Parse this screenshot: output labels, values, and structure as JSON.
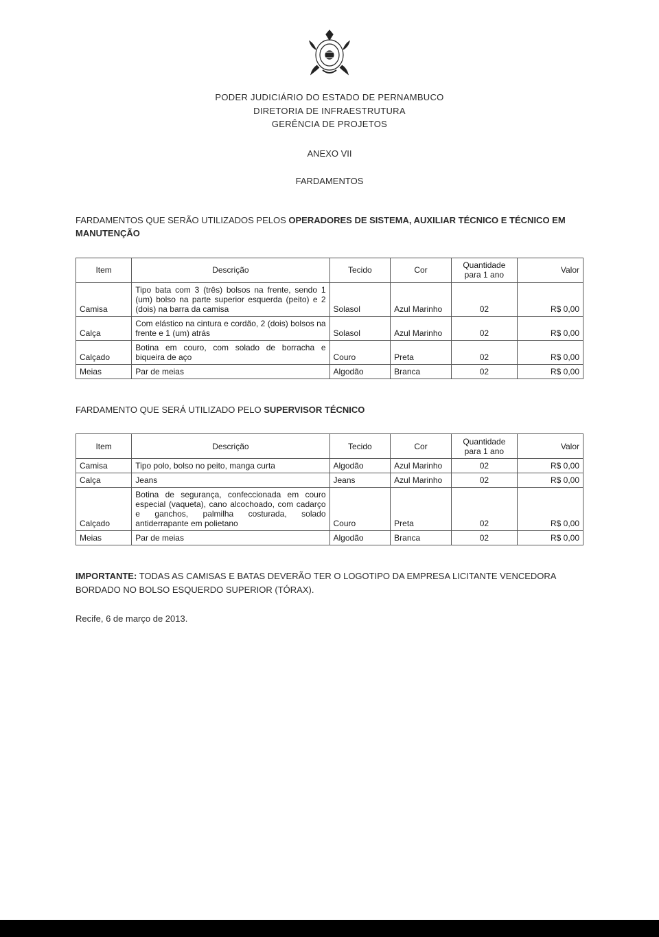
{
  "header": {
    "line1": "PODER JUDICIÁRIO DO ESTADO DE PERNAMBUCO",
    "line2": "DIRETORIA DE INFRAESTRUTURA",
    "line3": "GERÊNCIA DE PROJETOS"
  },
  "anexo": "ANEXO VII",
  "section_title": "FARDAMENTOS",
  "intro1_prefix": "FARDAMENTOS QUE SERÃO UTILIZADOS PELOS ",
  "intro1_bold": "OPERADORES DE SISTEMA, AUXILIAR TÉCNICO E TÉCNICO EM MANUTENÇÃO",
  "intro2_prefix": "FARDAMENTO QUE SERÁ UTILIZADO PELO ",
  "intro2_bold": "SUPERVISOR TÉCNICO",
  "table_headers": {
    "item": "Item",
    "descricao": "Descrição",
    "tecido": "Tecido",
    "cor": "Cor",
    "quantidade": "Quantidade para 1 ano",
    "valor": "Valor"
  },
  "table1": {
    "rows": [
      {
        "item": "Camisa",
        "descricao": "Tipo bata com 3 (três) bolsos na frente, sendo 1 (um) bolso na parte superior esquerda (peito) e 2 (dois) na barra da camisa",
        "tecido": "Solasol",
        "cor": "Azul Marinho",
        "quantidade": "02",
        "valor": "R$ 0,00"
      },
      {
        "item": "Calça",
        "descricao": "Com elástico na cintura e cordão, 2 (dois) bolsos na frente e 1 (um) atrás",
        "tecido": "Solasol",
        "cor": "Azul Marinho",
        "quantidade": "02",
        "valor": "R$ 0,00"
      },
      {
        "item": "Calçado",
        "descricao": "Botina em couro, com solado de borracha e biqueira de aço",
        "tecido": "Couro",
        "cor": "Preta",
        "quantidade": "02",
        "valor": "R$ 0,00"
      },
      {
        "item": "Meias",
        "descricao": "Par de meias",
        "tecido": "Algodão",
        "cor": "Branca",
        "quantidade": "02",
        "valor": "R$ 0,00"
      }
    ]
  },
  "table2": {
    "rows": [
      {
        "item": "Camisa",
        "descricao": "Tipo polo, bolso no peito, manga curta",
        "tecido": "Algodão",
        "cor": "Azul Marinho",
        "quantidade": "02",
        "valor": "R$ 0,00"
      },
      {
        "item": "Calça",
        "descricao": "Jeans",
        "tecido": "Jeans",
        "cor": "Azul Marinho",
        "quantidade": "02",
        "valor": "R$ 0,00"
      },
      {
        "item": "Calçado",
        "descricao": "Botina de segurança, confeccionada em couro especial (vaqueta), cano alcochoado, com cadarço e ganchos, palmilha costurada, solado antiderrapante em polietano",
        "tecido": "Couro",
        "cor": "Preta",
        "quantidade": "02",
        "valor": "R$ 0,00"
      },
      {
        "item": "Meias",
        "descricao": "Par de meias",
        "tecido": "Algodão",
        "cor": "Branca",
        "quantidade": "02",
        "valor": "R$ 0,00"
      }
    ]
  },
  "important_label": "IMPORTANTE:",
  "important_text": " TODAS AS CAMISAS E BATAS DEVERÃO TER O LOGOTIPO DA EMPRESA LICITANTE VENCEDORA BORDADO NO BOLSO ESQUERDO SUPERIOR (TÓRAX).",
  "date": "Recife, 6 de março de 2013."
}
